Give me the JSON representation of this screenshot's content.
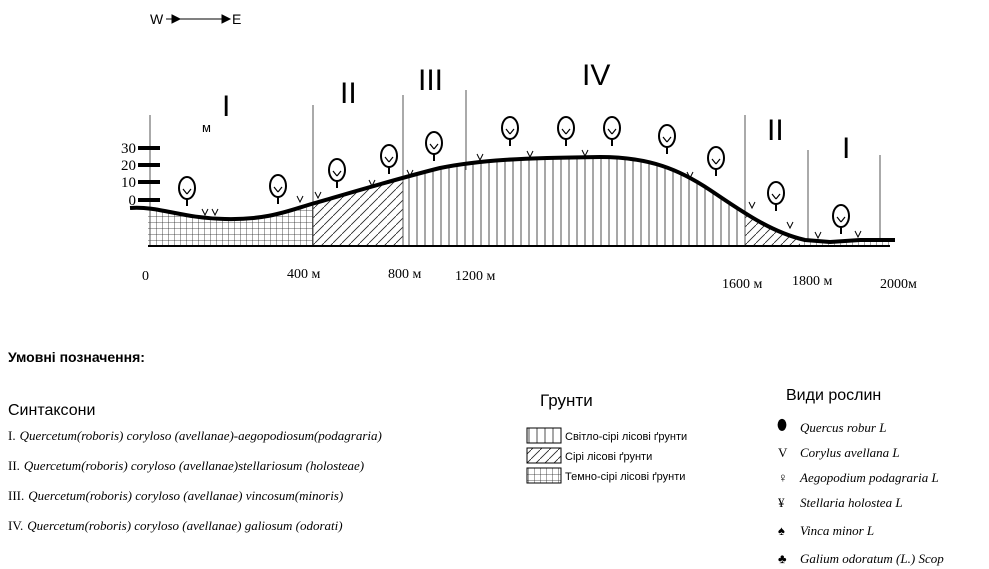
{
  "compass": {
    "west": "W",
    "east": "E"
  },
  "profile": {
    "zones": [
      "I",
      "II",
      "III",
      "IV",
      "II",
      "I"
    ],
    "height_unit": "м",
    "height_labels": [
      "30",
      "20",
      "10",
      "0"
    ],
    "distance_labels": [
      "0",
      "400 м",
      "800 м",
      "1200 м",
      "1600 м",
      "1800 м",
      "2000м"
    ]
  },
  "legend": {
    "title": "Умовні позначення:",
    "syntaxa": {
      "title": "Синтаксони",
      "items": [
        {
          "num": "I.",
          "name": "Quercetum(roboris) coryloso (avellanae)-aegopodiosum(podagraria)"
        },
        {
          "num": "II.",
          "name": "Quercetum(roboris) coryloso (avellanae)stellariosum (holosteae)"
        },
        {
          "num": "III.",
          "name": "Quercetum(roboris) coryloso (avellanae) vincosum(minoris)"
        },
        {
          "num": "IV.",
          "name": "Quercetum(roboris) coryloso (avellanae) galiosum (odorati)"
        }
      ]
    },
    "soils": {
      "title": "Грунти",
      "items": [
        "Світло-сірі лісові ґрунти",
        "Сірі лісові ґрунти",
        "Темно-сірі лісові ґрунти"
      ]
    },
    "plants": {
      "title": "Види рослин",
      "items": [
        {
          "symbol": "",
          "name": "Quercus robur L"
        },
        {
          "symbol": "V",
          "name": "Corylus avellana L"
        },
        {
          "symbol": "♀",
          "name": "Aegopodium podagraria L"
        },
        {
          "symbol": "¥",
          "name": "Stellaria holostea L"
        },
        {
          "symbol": "♠",
          "name": "Vinca minor L"
        },
        {
          "symbol": "♣",
          "name": "Galium odoratum (L.) Scop"
        }
      ]
    }
  }
}
